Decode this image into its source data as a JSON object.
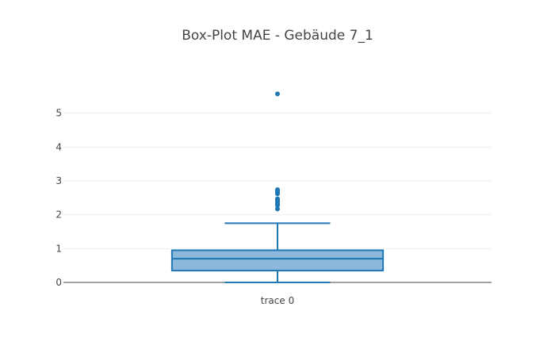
{
  "chart_data": {
    "type": "box",
    "title": "Box-Plot MAE - Gebäude 7_1",
    "xlabel": "",
    "ylabel": "",
    "categories": [
      "trace 0"
    ],
    "ylim": [
      0,
      6.0
    ],
    "yticks": [
      0,
      1,
      2,
      3,
      4,
      5
    ],
    "grid": true,
    "legend": "none",
    "series": [
      {
        "name": "trace 0",
        "whisker_low": 0.0,
        "q1": 0.35,
        "median": 0.7,
        "q3": 0.95,
        "whisker_high": 1.75,
        "outliers": [
          2.17,
          2.28,
          2.33,
          2.38,
          2.43,
          2.47,
          2.62,
          2.67,
          2.71,
          2.74,
          5.57
        ],
        "color": "#1f77b4",
        "fill": "#8bb8db"
      }
    ]
  }
}
